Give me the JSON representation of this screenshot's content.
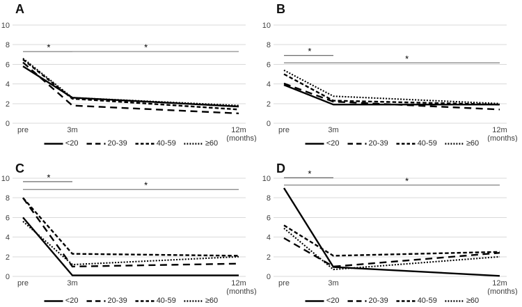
{
  "figure": {
    "background": "#ffffff",
    "grid_color": "#d9d9d9",
    "data_line_color": "#000000",
    "sig_line_color_short": "#595959",
    "sig_line_color_long": "#808080",
    "tick_text_color": "#404040",
    "panel_letter_color": "#111111",
    "series_styles": [
      {
        "id": "lt20",
        "dash": "",
        "width": 2.4,
        "legend_dash": ""
      },
      {
        "id": "20-39",
        "dash": "10,6.5",
        "width": 2.4,
        "legend_dash": "7.5,5"
      },
      {
        "id": "40-59",
        "dash": "5.5,3.2",
        "width": 2.4,
        "legend_dash": "4.5,3"
      },
      {
        "id": "ge60",
        "dash": "2,2.2",
        "width": 2.1,
        "legend_dash": "1.8,2.2"
      }
    ]
  },
  "axis": {
    "y_ticks": [
      0,
      2,
      4,
      6,
      8,
      10
    ],
    "ylim": [
      0,
      10
    ],
    "x_labels": [
      "pre",
      "3m",
      "12m"
    ],
    "x_unit": "(months)",
    "grid": true
  },
  "legend_labels": [
    "<20",
    "20-39",
    "40-59",
    "≥60"
  ],
  "chart_data": [
    {
      "panel": "A",
      "type": "line",
      "categories": [
        "pre",
        "3m",
        "12m"
      ],
      "x_months": [
        0,
        3,
        12
      ],
      "ylim": [
        0,
        10
      ],
      "series": [
        {
          "name": "<20",
          "values": [
            5.8,
            2.6,
            1.7
          ]
        },
        {
          "name": "20-39",
          "values": [
            6.2,
            1.8,
            1.0
          ]
        },
        {
          "name": "40-59",
          "values": [
            6.5,
            2.5,
            1.4
          ]
        },
        {
          "name": "≥60",
          "values": [
            6.6,
            2.6,
            1.8
          ]
        }
      ],
      "significance": [
        {
          "span": [
            "pre",
            "3m"
          ],
          "y": 7.3,
          "marker": "*"
        },
        {
          "span": [
            "pre",
            "12m"
          ],
          "y": 7.3,
          "marker": "*"
        }
      ]
    },
    {
      "panel": "B",
      "type": "line",
      "categories": [
        "pre",
        "3m",
        "12m"
      ],
      "x_months": [
        0,
        3,
        12
      ],
      "ylim": [
        0,
        10
      ],
      "series": [
        {
          "name": "<20",
          "values": [
            3.9,
            1.9,
            1.9
          ]
        },
        {
          "name": "20-39",
          "values": [
            4.05,
            2.2,
            1.4
          ]
        },
        {
          "name": "40-59",
          "values": [
            5.0,
            2.3,
            1.9
          ]
        },
        {
          "name": "≥60",
          "values": [
            5.4,
            2.75,
            2.0
          ]
        }
      ],
      "significance": [
        {
          "span": [
            "pre",
            "3m"
          ],
          "y": 6.9,
          "marker": "*"
        },
        {
          "span": [
            "pre",
            "12m"
          ],
          "y": 6.15,
          "marker": "*"
        }
      ]
    },
    {
      "panel": "C",
      "type": "line",
      "categories": [
        "pre",
        "3m",
        "12m"
      ],
      "x_months": [
        0,
        3,
        12
      ],
      "ylim": [
        0,
        10
      ],
      "series": [
        {
          "name": "<20",
          "values": [
            6.0,
            0.1,
            0.1
          ]
        },
        {
          "name": "20-39",
          "values": [
            8.0,
            1.0,
            1.3
          ]
        },
        {
          "name": "40-59",
          "values": [
            8.0,
            2.3,
            2.1
          ]
        },
        {
          "name": "≥60",
          "values": [
            5.6,
            1.2,
            2.0
          ]
        }
      ],
      "significance": [
        {
          "span": [
            "pre",
            "3m"
          ],
          "y": 9.65,
          "marker": "*"
        },
        {
          "span": [
            "pre",
            "12m"
          ],
          "y": 8.85,
          "marker": "*"
        }
      ]
    },
    {
      "panel": "D",
      "type": "line",
      "categories": [
        "pre",
        "3m",
        "12m"
      ],
      "x_months": [
        0,
        3,
        12
      ],
      "ylim": [
        0,
        10
      ],
      "series": [
        {
          "name": "<20",
          "values": [
            9.0,
            0.95,
            0.05
          ]
        },
        {
          "name": "20-39",
          "values": [
            3.9,
            1.0,
            2.4
          ]
        },
        {
          "name": "40-59",
          "values": [
            5.2,
            2.1,
            2.5
          ]
        },
        {
          "name": "≥60",
          "values": [
            4.9,
            0.7,
            2.0
          ]
        }
      ],
      "significance": [
        {
          "span": [
            "pre",
            "3m"
          ],
          "y": 10.05,
          "marker": "*"
        },
        {
          "span": [
            "pre",
            "12m"
          ],
          "y": 9.3,
          "marker": "*"
        }
      ]
    }
  ]
}
